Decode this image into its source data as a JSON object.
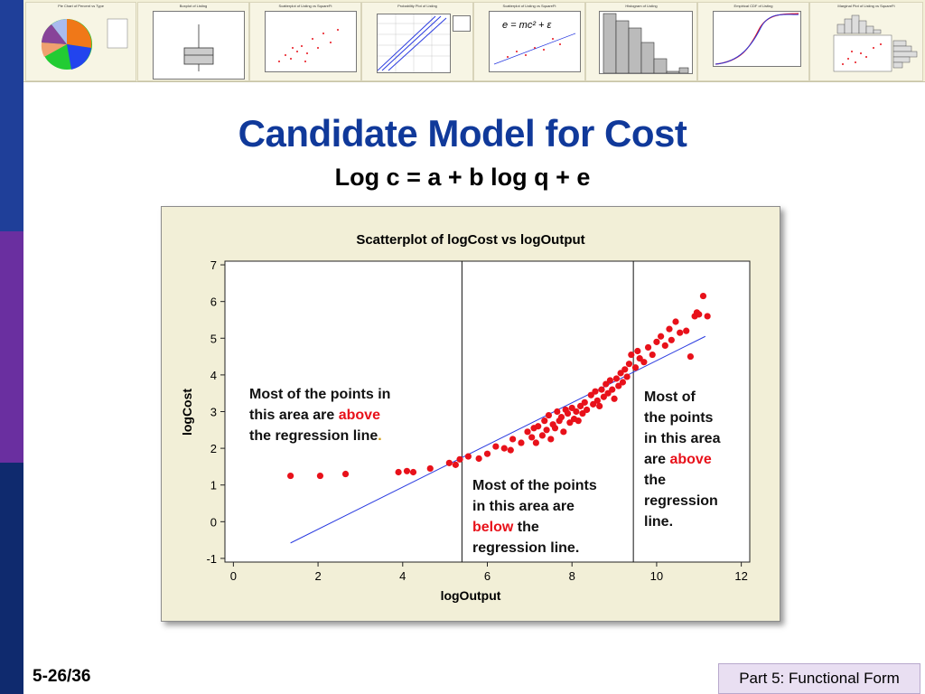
{
  "slide": {
    "title": "Candidate Model for Cost",
    "subtitle": "Log c = a + b log q + e",
    "slide_number": "5-26/36",
    "footer": "Part 5: Functional Form"
  },
  "thumbnails": [
    {
      "title": "Pie Chart of Percent vs Type",
      "kind": "pie"
    },
    {
      "title": "Boxplot of Listing",
      "kind": "boxplot"
    },
    {
      "title": "Scatterplot of Listing vs SquareFt",
      "kind": "scatter"
    },
    {
      "title": "Probability Plot of Listing",
      "kind": "probability"
    },
    {
      "title": "Scatterplot of Listing vs SquareFt",
      "kind": "equation",
      "equation": "e = mc² + ε"
    },
    {
      "title": "Histogram of Listing",
      "kind": "histogram"
    },
    {
      "title": "Empirical CDF of Listing",
      "kind": "cdf"
    },
    {
      "title": "Marginal Plot of Listing vs SquareFt",
      "kind": "marginal"
    }
  ],
  "annotations": {
    "left": [
      "Most of the points in",
      "this area are ",
      "above",
      "the regression line",
      "."
    ],
    "middle": [
      "Most of the points",
      "in this area are",
      "below",
      " the",
      "regression line."
    ],
    "right": [
      "Most of",
      "the points",
      "in this area",
      "are ",
      "above",
      "the",
      "regression",
      "line."
    ]
  },
  "colors": {
    "title": "#10399a",
    "points": "#e8111a",
    "regression_line": "#2a3be0",
    "highlight": "#e8111a",
    "chart_bg": "#f2efd7"
  },
  "chart_data": {
    "type": "scatter",
    "title": "Scatterplot of logCost vs logOutput",
    "xlabel": "logOutput",
    "ylabel": "logCost",
    "xlim": [
      -0.2,
      12.2
    ],
    "ylim": [
      -1.1,
      7.1
    ],
    "xticks": [
      0,
      2,
      4,
      6,
      8,
      10,
      12
    ],
    "yticks": [
      -1,
      0,
      1,
      2,
      3,
      4,
      5,
      6,
      7
    ],
    "vertical_lines": [
      5.4,
      9.45
    ],
    "regression_line": {
      "x": [
        1.35,
        11.15
      ],
      "y": [
        -0.58,
        5.05
      ]
    },
    "series": [
      {
        "points": [
          [
            1.35,
            1.25
          ],
          [
            2.05,
            1.25
          ],
          [
            2.65,
            1.3
          ],
          [
            3.9,
            1.35
          ],
          [
            4.1,
            1.38
          ],
          [
            4.25,
            1.35
          ],
          [
            4.65,
            1.45
          ],
          [
            5.1,
            1.6
          ],
          [
            5.25,
            1.55
          ],
          [
            5.35,
            1.7
          ],
          [
            5.55,
            1.78
          ],
          [
            5.8,
            1.72
          ],
          [
            6.0,
            1.85
          ],
          [
            6.2,
            2.05
          ],
          [
            6.55,
            1.95
          ],
          [
            6.6,
            2.25
          ],
          [
            6.8,
            2.15
          ],
          [
            6.95,
            2.45
          ],
          [
            7.05,
            2.3
          ],
          [
            7.1,
            2.55
          ],
          [
            7.2,
            2.6
          ],
          [
            7.3,
            2.35
          ],
          [
            7.35,
            2.75
          ],
          [
            7.4,
            2.5
          ],
          [
            7.45,
            2.9
          ],
          [
            7.55,
            2.65
          ],
          [
            7.6,
            2.55
          ],
          [
            7.65,
            3.0
          ],
          [
            7.7,
            2.75
          ],
          [
            7.75,
            2.85
          ],
          [
            7.8,
            2.45
          ],
          [
            7.85,
            3.05
          ],
          [
            7.9,
            2.95
          ],
          [
            7.95,
            2.7
          ],
          [
            8.0,
            3.1
          ],
          [
            8.05,
            2.8
          ],
          [
            8.1,
            3.0
          ],
          [
            8.2,
            3.15
          ],
          [
            8.25,
            2.95
          ],
          [
            8.3,
            3.25
          ],
          [
            8.35,
            3.05
          ],
          [
            8.45,
            3.45
          ],
          [
            8.5,
            3.2
          ],
          [
            8.55,
            3.55
          ],
          [
            8.6,
            3.3
          ],
          [
            8.65,
            3.15
          ],
          [
            8.7,
            3.6
          ],
          [
            8.75,
            3.4
          ],
          [
            8.8,
            3.75
          ],
          [
            8.85,
            3.5
          ],
          [
            8.9,
            3.85
          ],
          [
            8.95,
            3.6
          ],
          [
            9.0,
            3.35
          ],
          [
            9.05,
            3.9
          ],
          [
            9.1,
            3.7
          ],
          [
            9.15,
            4.05
          ],
          [
            9.2,
            3.8
          ],
          [
            9.25,
            4.15
          ],
          [
            9.3,
            3.95
          ],
          [
            9.35,
            4.3
          ],
          [
            9.4,
            4.55
          ],
          [
            9.5,
            4.2
          ],
          [
            9.6,
            4.45
          ],
          [
            9.7,
            4.35
          ],
          [
            9.8,
            4.75
          ],
          [
            9.9,
            4.55
          ],
          [
            10.0,
            4.9
          ],
          [
            10.1,
            5.05
          ],
          [
            10.2,
            4.8
          ],
          [
            10.3,
            5.25
          ],
          [
            10.45,
            5.45
          ],
          [
            10.55,
            5.15
          ],
          [
            10.7,
            5.2
          ],
          [
            10.8,
            4.5
          ],
          [
            10.9,
            5.6
          ],
          [
            11.0,
            5.65
          ],
          [
            11.1,
            6.15
          ],
          [
            11.2,
            5.6
          ],
          [
            10.95,
            5.7
          ],
          [
            6.4,
            2.0
          ],
          [
            7.15,
            2.15
          ],
          [
            8.15,
            2.75
          ],
          [
            9.55,
            4.65
          ],
          [
            10.35,
            4.95
          ],
          [
            7.5,
            2.25
          ]
        ]
      }
    ],
    "grid": false,
    "legend": "none"
  }
}
